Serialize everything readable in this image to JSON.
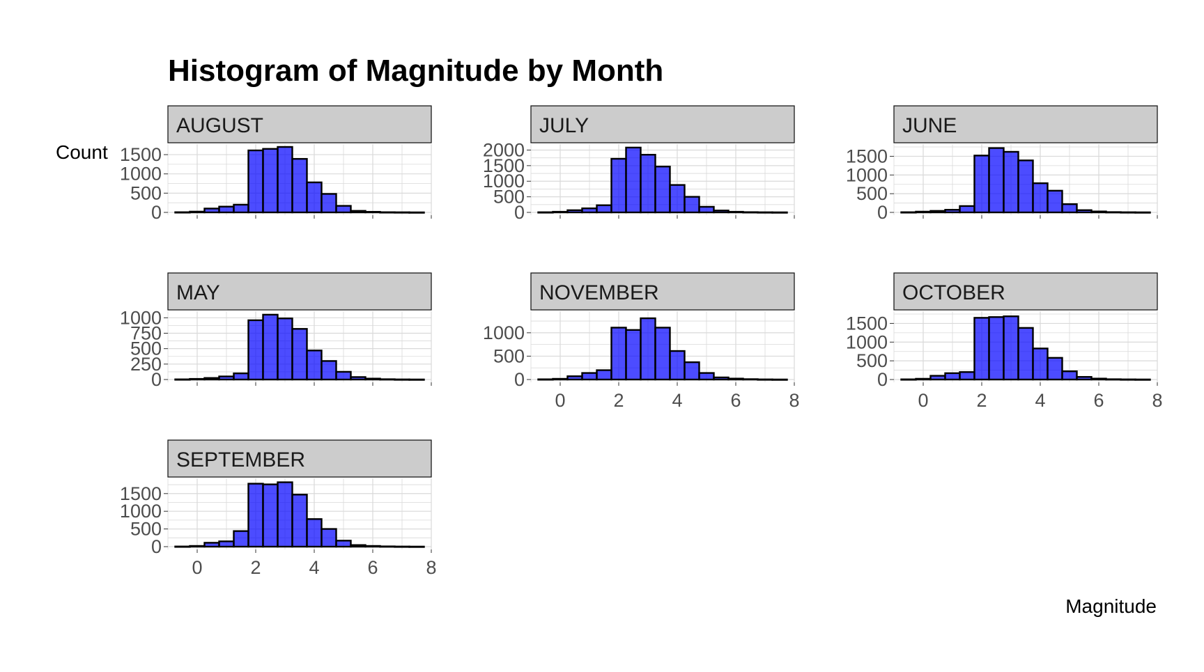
{
  "chart_data": {
    "type": "bar",
    "title": "Histogram of Magnitude by Month",
    "xlabel": "Magnitude",
    "ylabel": "Count",
    "bin_width": 0.5,
    "bin_centers": [
      -0.5,
      0,
      0.5,
      1,
      1.5,
      2,
      2.5,
      3,
      3.5,
      4,
      4.5,
      5,
      5.5,
      6,
      6.5,
      7,
      7.5
    ],
    "xlim": [
      -1,
      8
    ],
    "xticks": [
      0,
      2,
      4,
      6,
      8
    ],
    "grid": true,
    "colors": {
      "bar_fill": "#0000ff",
      "bar_opacity": 0.7,
      "bar_stroke": "#000000",
      "strip_fill": "#cccccc",
      "grid": "#d9d9d9"
    },
    "facets": [
      {
        "name": "AUGUST",
        "ylim": [
          0,
          1700
        ],
        "yticks": [
          0,
          500,
          1000,
          1500
        ],
        "show_x_axis": false,
        "values": [
          5,
          20,
          100,
          150,
          200,
          1610,
          1650,
          1700,
          1390,
          780,
          480,
          170,
          40,
          15,
          5,
          3,
          1
        ]
      },
      {
        "name": "JULY",
        "ylim": [
          0,
          2100
        ],
        "yticks": [
          0,
          500,
          1000,
          1500,
          2000
        ],
        "show_x_axis": false,
        "values": [
          5,
          20,
          70,
          130,
          230,
          1720,
          2080,
          1850,
          1470,
          880,
          500,
          180,
          60,
          20,
          8,
          4,
          2
        ]
      },
      {
        "name": "JUNE",
        "ylim": [
          0,
          1750
        ],
        "yticks": [
          0,
          500,
          1000,
          1500
        ],
        "show_x_axis": false,
        "values": [
          5,
          20,
          40,
          70,
          170,
          1520,
          1720,
          1620,
          1390,
          780,
          580,
          220,
          60,
          25,
          8,
          4,
          2
        ]
      },
      {
        "name": "MAY",
        "ylim": [
          0,
          1060
        ],
        "yticks": [
          0,
          250,
          500,
          750,
          1000
        ],
        "show_x_axis": false,
        "values": [
          3,
          10,
          25,
          50,
          100,
          960,
          1050,
          990,
          820,
          470,
          300,
          125,
          40,
          15,
          5,
          2,
          1
        ]
      },
      {
        "name": "NOVEMBER",
        "ylim": [
          0,
          1400
        ],
        "yticks": [
          0,
          500,
          1000
        ],
        "show_x_axis": true,
        "values": [
          5,
          15,
          70,
          140,
          200,
          1110,
          1060,
          1310,
          1110,
          610,
          370,
          140,
          45,
          20,
          8,
          3,
          1
        ]
      },
      {
        "name": "OCTOBER",
        "ylim": [
          0,
          1750
        ],
        "yticks": [
          0,
          500,
          1000,
          1500
        ],
        "show_x_axis": true,
        "values": [
          5,
          20,
          100,
          170,
          200,
          1650,
          1670,
          1690,
          1380,
          830,
          580,
          220,
          70,
          25,
          8,
          4,
          2
        ]
      },
      {
        "name": "SEPTEMBER",
        "ylim": [
          0,
          1850
        ],
        "yticks": [
          0,
          500,
          1000,
          1500
        ],
        "show_x_axis": true,
        "values": [
          5,
          20,
          110,
          150,
          440,
          1780,
          1760,
          1820,
          1470,
          780,
          500,
          170,
          45,
          20,
          8,
          4,
          2
        ]
      }
    ]
  }
}
